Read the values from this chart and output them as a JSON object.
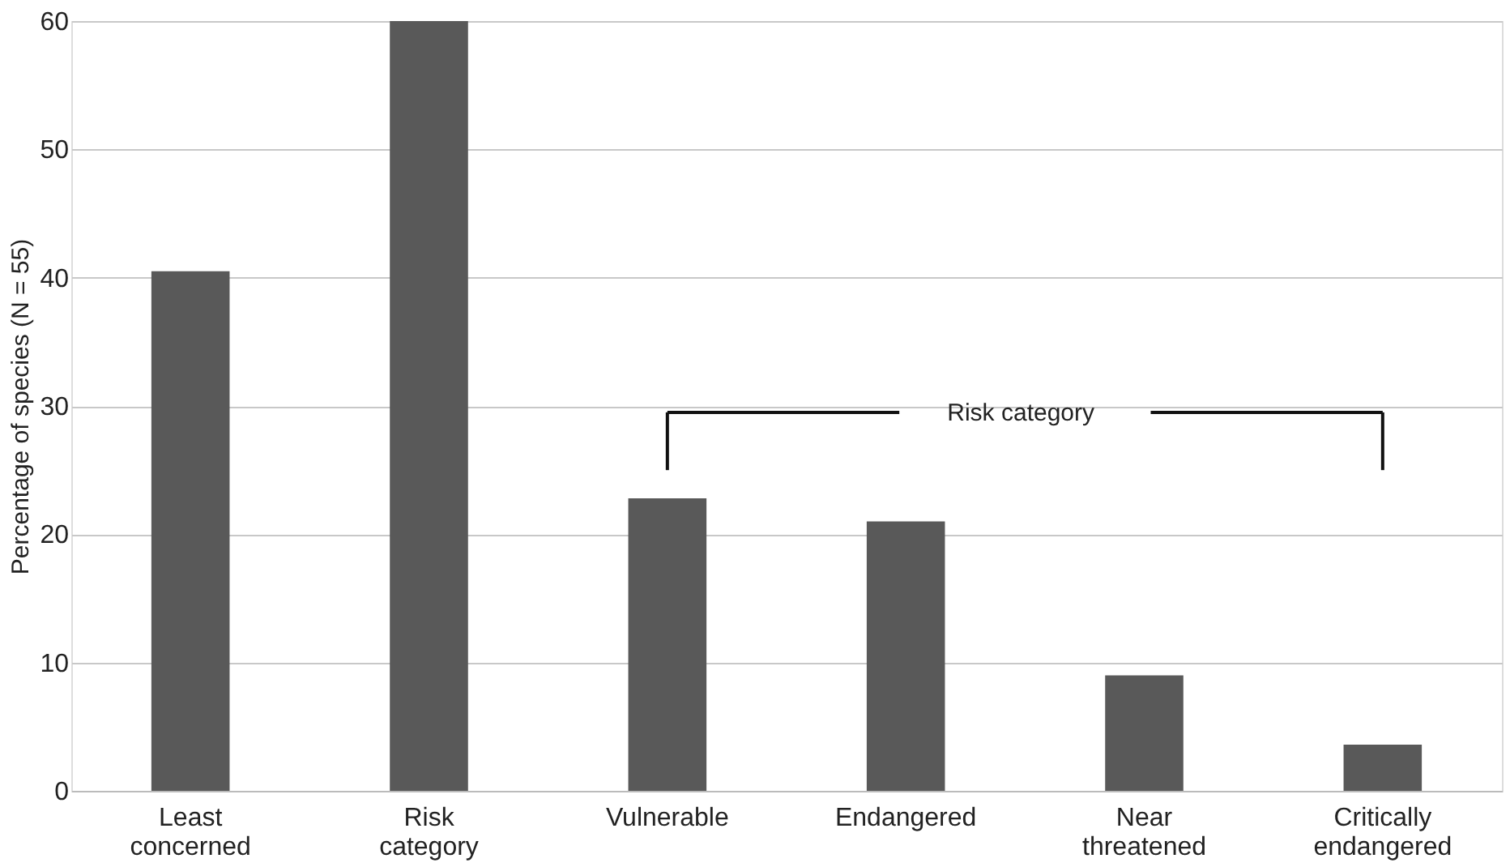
{
  "chart_data": {
    "type": "bar",
    "categories": [
      "Least concerned",
      "Risk category",
      "Vulnerable",
      "Endangered",
      "Near threatened",
      "Critically endangered"
    ],
    "values": [
      40.5,
      60,
      22.8,
      21,
      9,
      3.6
    ],
    "color": "#595959",
    "ylabel": "Percentage of species (N = 55)",
    "ylim": [
      0,
      60
    ],
    "yticks": [
      0,
      10,
      20,
      30,
      40,
      50,
      60
    ],
    "grid": "y",
    "annotations": [
      "Risk category"
    ]
  }
}
